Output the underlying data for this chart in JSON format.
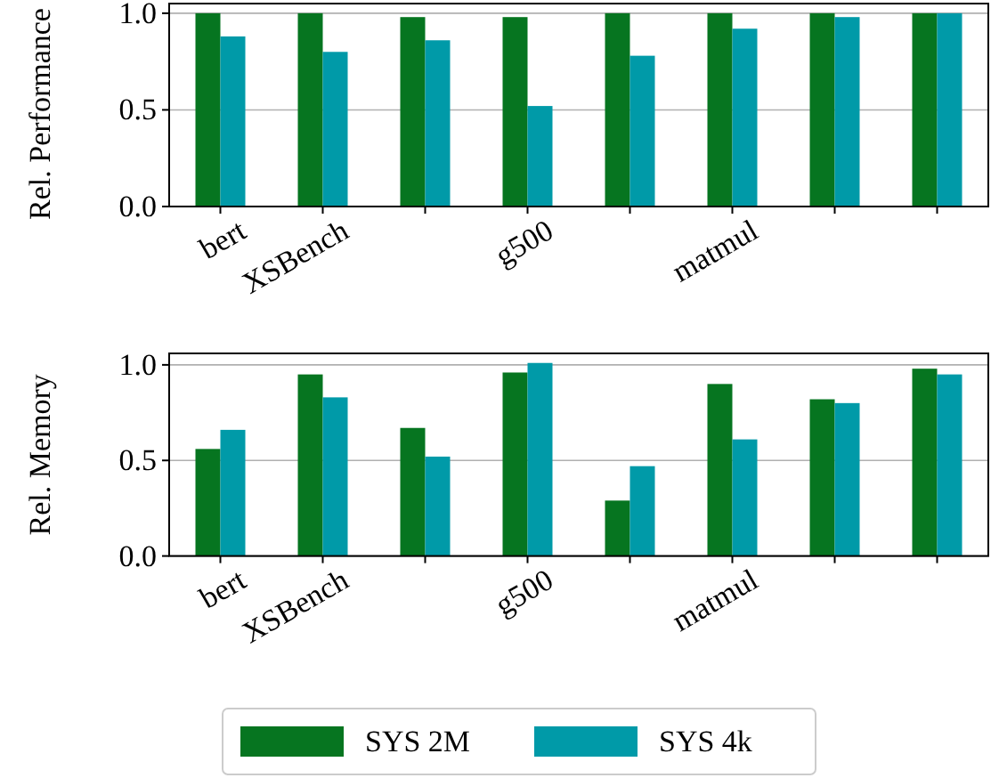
{
  "chart_data": [
    {
      "type": "bar",
      "ylabel": "Rel. Performance",
      "categories": [
        "bert",
        "XSBench",
        null,
        "g500",
        null,
        "matmul",
        null,
        null
      ],
      "series": [
        {
          "color": "#067520",
          "values": [
            1.0,
            1.0,
            0.98,
            0.98,
            1.0,
            1.0,
            1.0,
            1.0
          ]
        },
        {
          "color": "#009aa8",
          "values": [
            0.88,
            0.8,
            0.86,
            0.52,
            0.78,
            0.92,
            0.98,
            1.0
          ]
        }
      ],
      "ylim": [
        0,
        1.05
      ],
      "yticks": [
        {
          "value": 0,
          "label": "0.0"
        },
        {
          "value": 0.5,
          "label": "0.5"
        },
        {
          "value": 1,
          "label": "1.0"
        }
      ],
      "grid": "y"
    },
    {
      "type": "bar",
      "ylabel": "Rel. Memory",
      "categories": [
        "bert",
        "XSBench",
        null,
        "g500",
        null,
        "matmul",
        null,
        null
      ],
      "series": [
        {
          "name": "SYS 2M",
          "color": "#067520",
          "values": [
            0.56,
            0.95,
            0.67,
            0.96,
            0.29,
            0.9,
            0.82,
            0.98
          ]
        },
        {
          "name": "SYS 4k",
          "color": "#009aa8",
          "values": [
            0.66,
            0.83,
            0.52,
            1.01,
            0.47,
            0.61,
            0.8,
            0.95
          ]
        }
      ],
      "ylim": [
        0,
        1.06
      ],
      "yticks": [
        {
          "value": 0,
          "label": "0.0"
        },
        {
          "value": 0.5,
          "label": "0.5"
        },
        {
          "value": 1,
          "label": "1.0"
        }
      ],
      "grid": "y",
      "legend": "bottom"
    }
  ]
}
